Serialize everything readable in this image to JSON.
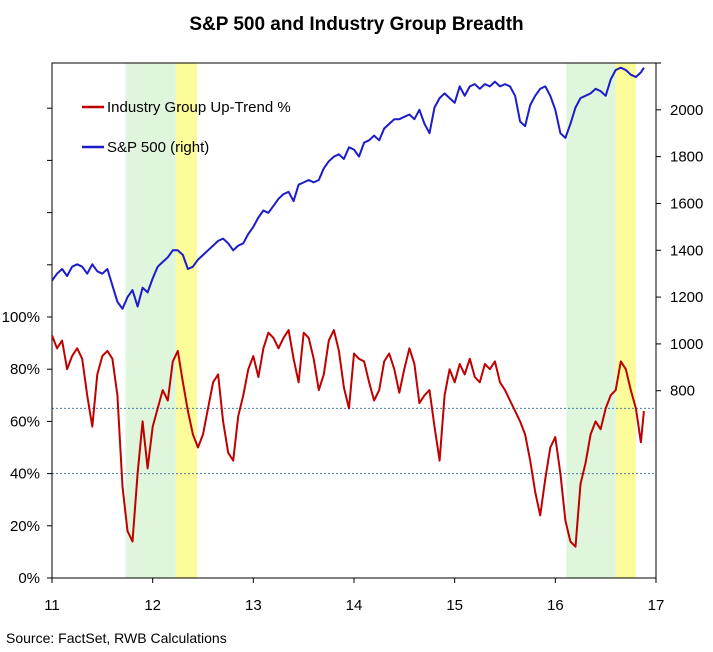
{
  "chart_data": {
    "type": "line",
    "title": "S&P 500 and Industry Group Breadth",
    "source": "Source: FactSet, RWB Calculations",
    "x_ticks": [
      "11",
      "12",
      "13",
      "14",
      "15",
      "16",
      "17"
    ],
    "xlim": [
      2011,
      2017
    ],
    "left_axis": {
      "ylim": [
        0,
        100
      ],
      "ticks": [
        "0%",
        "20%",
        "40%",
        "60%",
        "80%",
        "100%"
      ]
    },
    "right_axis": {
      "ylim": [
        0,
        2200
      ],
      "ticks": [
        "800",
        "1000",
        "1200",
        "1400",
        "1600",
        "1800",
        "2000"
      ]
    },
    "reference_lines": [
      65,
      40
    ],
    "shaded_regions": [
      {
        "start": 2011.73,
        "end": 2012.23,
        "color": "#dff5dc"
      },
      {
        "start": 2012.23,
        "end": 2012.44,
        "color": "#fbfb9a"
      },
      {
        "start": 2016.11,
        "end": 2016.6,
        "color": "#dff5dc"
      },
      {
        "start": 2016.6,
        "end": 2016.8,
        "color": "#fbfb9a"
      }
    ],
    "legend": [
      {
        "label": "Industry Group Up-Trend %",
        "color": "#c00000"
      },
      {
        "label": "S&P 500 (right)",
        "color": "#1c1cc8"
      }
    ],
    "series": [
      {
        "name": "Industry Group Up-Trend %",
        "axis": "left",
        "color": "#c00000",
        "x": [
          2011.0,
          2011.05,
          2011.1,
          2011.15,
          2011.2,
          2011.25,
          2011.3,
          2011.35,
          2011.4,
          2011.45,
          2011.5,
          2011.55,
          2011.6,
          2011.65,
          2011.7,
          2011.75,
          2011.8,
          2011.85,
          2011.9,
          2011.95,
          2012.0,
          2012.05,
          2012.1,
          2012.15,
          2012.2,
          2012.25,
          2012.3,
          2012.35,
          2012.4,
          2012.45,
          2012.5,
          2012.55,
          2012.6,
          2012.65,
          2012.7,
          2012.75,
          2012.8,
          2012.85,
          2012.9,
          2012.95,
          2013.0,
          2013.05,
          2013.1,
          2013.15,
          2013.2,
          2013.25,
          2013.3,
          2013.35,
          2013.4,
          2013.45,
          2013.5,
          2013.55,
          2013.6,
          2013.65,
          2013.7,
          2013.75,
          2013.8,
          2013.85,
          2013.9,
          2013.95,
          2014.0,
          2014.05,
          2014.1,
          2014.15,
          2014.2,
          2014.25,
          2014.3,
          2014.35,
          2014.4,
          2014.45,
          2014.5,
          2014.55,
          2014.6,
          2014.65,
          2014.7,
          2014.75,
          2014.8,
          2014.85,
          2014.9,
          2014.95,
          2015.0,
          2015.05,
          2015.1,
          2015.15,
          2015.2,
          2015.25,
          2015.3,
          2015.35,
          2015.4,
          2015.45,
          2015.5,
          2015.55,
          2015.6,
          2015.65,
          2015.7,
          2015.75,
          2015.8,
          2015.85,
          2015.9,
          2015.95,
          2016.0,
          2016.05,
          2016.1,
          2016.15,
          2016.2,
          2016.25,
          2016.3,
          2016.35,
          2016.4,
          2016.45,
          2016.5,
          2016.55,
          2016.6,
          2016.65,
          2016.7,
          2016.75,
          2016.8,
          2016.85,
          2016.88
        ],
        "values": [
          93,
          88,
          91,
          80,
          85,
          88,
          84,
          70,
          58,
          78,
          85,
          87,
          84,
          70,
          35,
          18,
          14,
          40,
          60,
          42,
          58,
          65,
          72,
          68,
          83,
          87,
          75,
          64,
          55,
          50,
          55,
          65,
          75,
          78,
          60,
          48,
          45,
          62,
          70,
          80,
          85,
          77,
          88,
          94,
          92,
          88,
          92,
          95,
          84,
          75,
          94,
          92,
          84,
          72,
          78,
          91,
          95,
          87,
          73,
          65,
          86,
          84,
          83,
          75,
          68,
          72,
          83,
          86,
          80,
          71,
          80,
          88,
          82,
          67,
          70,
          72,
          58,
          45,
          70,
          80,
          75,
          82,
          78,
          84,
          77,
          75,
          82,
          80,
          83,
          75,
          72,
          68,
          64,
          60,
          55,
          45,
          33,
          24,
          38,
          50,
          54,
          40,
          22,
          14,
          12,
          36,
          44,
          55,
          60,
          57,
          65,
          70,
          72,
          83,
          80,
          72,
          65,
          52,
          64
        ]
      },
      {
        "name": "S&P 500 (right)",
        "axis": "right",
        "color": "#1c1cc8",
        "x": [
          2011.0,
          2011.05,
          2011.1,
          2011.15,
          2011.2,
          2011.25,
          2011.3,
          2011.35,
          2011.4,
          2011.45,
          2011.5,
          2011.55,
          2011.6,
          2011.65,
          2011.7,
          2011.75,
          2011.8,
          2011.85,
          2011.9,
          2011.95,
          2012.0,
          2012.05,
          2012.1,
          2012.15,
          2012.2,
          2012.25,
          2012.3,
          2012.35,
          2012.4,
          2012.45,
          2012.5,
          2012.55,
          2012.6,
          2012.65,
          2012.7,
          2012.75,
          2012.8,
          2012.85,
          2012.9,
          2012.95,
          2013.0,
          2013.05,
          2013.1,
          2013.15,
          2013.2,
          2013.25,
          2013.3,
          2013.35,
          2013.4,
          2013.45,
          2013.5,
          2013.55,
          2013.6,
          2013.65,
          2013.7,
          2013.75,
          2013.8,
          2013.85,
          2013.9,
          2013.95,
          2014.0,
          2014.05,
          2014.1,
          2014.15,
          2014.2,
          2014.25,
          2014.3,
          2014.35,
          2014.4,
          2014.45,
          2014.5,
          2014.55,
          2014.6,
          2014.65,
          2014.7,
          2014.75,
          2014.8,
          2014.85,
          2014.9,
          2014.95,
          2015.0,
          2015.05,
          2015.1,
          2015.15,
          2015.2,
          2015.25,
          2015.3,
          2015.35,
          2015.4,
          2015.45,
          2015.5,
          2015.55,
          2015.6,
          2015.65,
          2015.7,
          2015.75,
          2015.8,
          2015.85,
          2015.9,
          2015.95,
          2016.0,
          2016.05,
          2016.1,
          2016.15,
          2016.2,
          2016.25,
          2016.3,
          2016.35,
          2016.4,
          2016.45,
          2016.5,
          2016.55,
          2016.6,
          2016.65,
          2016.7,
          2016.75,
          2016.8,
          2016.85,
          2016.88
        ],
        "values": [
          1270,
          1300,
          1320,
          1290,
          1330,
          1340,
          1330,
          1300,
          1340,
          1310,
          1300,
          1320,
          1250,
          1180,
          1150,
          1200,
          1230,
          1160,
          1240,
          1220,
          1280,
          1330,
          1350,
          1370,
          1400,
          1400,
          1380,
          1320,
          1330,
          1360,
          1380,
          1400,
          1420,
          1440,
          1450,
          1430,
          1400,
          1420,
          1430,
          1470,
          1500,
          1540,
          1570,
          1560,
          1590,
          1620,
          1640,
          1650,
          1610,
          1680,
          1690,
          1700,
          1690,
          1700,
          1750,
          1780,
          1800,
          1810,
          1790,
          1840,
          1830,
          1800,
          1860,
          1870,
          1890,
          1870,
          1920,
          1940,
          1960,
          1960,
          1970,
          1980,
          1960,
          2000,
          1940,
          1900,
          2010,
          2050,
          2070,
          2050,
          2030,
          2100,
          2060,
          2100,
          2110,
          2090,
          2110,
          2100,
          2120,
          2100,
          2110,
          2100,
          2060,
          1950,
          1930,
          2020,
          2060,
          2090,
          2100,
          2060,
          2000,
          1900,
          1880,
          1940,
          2010,
          2050,
          2060,
          2070,
          2090,
          2080,
          2060,
          2130,
          2170,
          2180,
          2170,
          2150,
          2140,
          2160,
          2180
        ]
      }
    ]
  }
}
